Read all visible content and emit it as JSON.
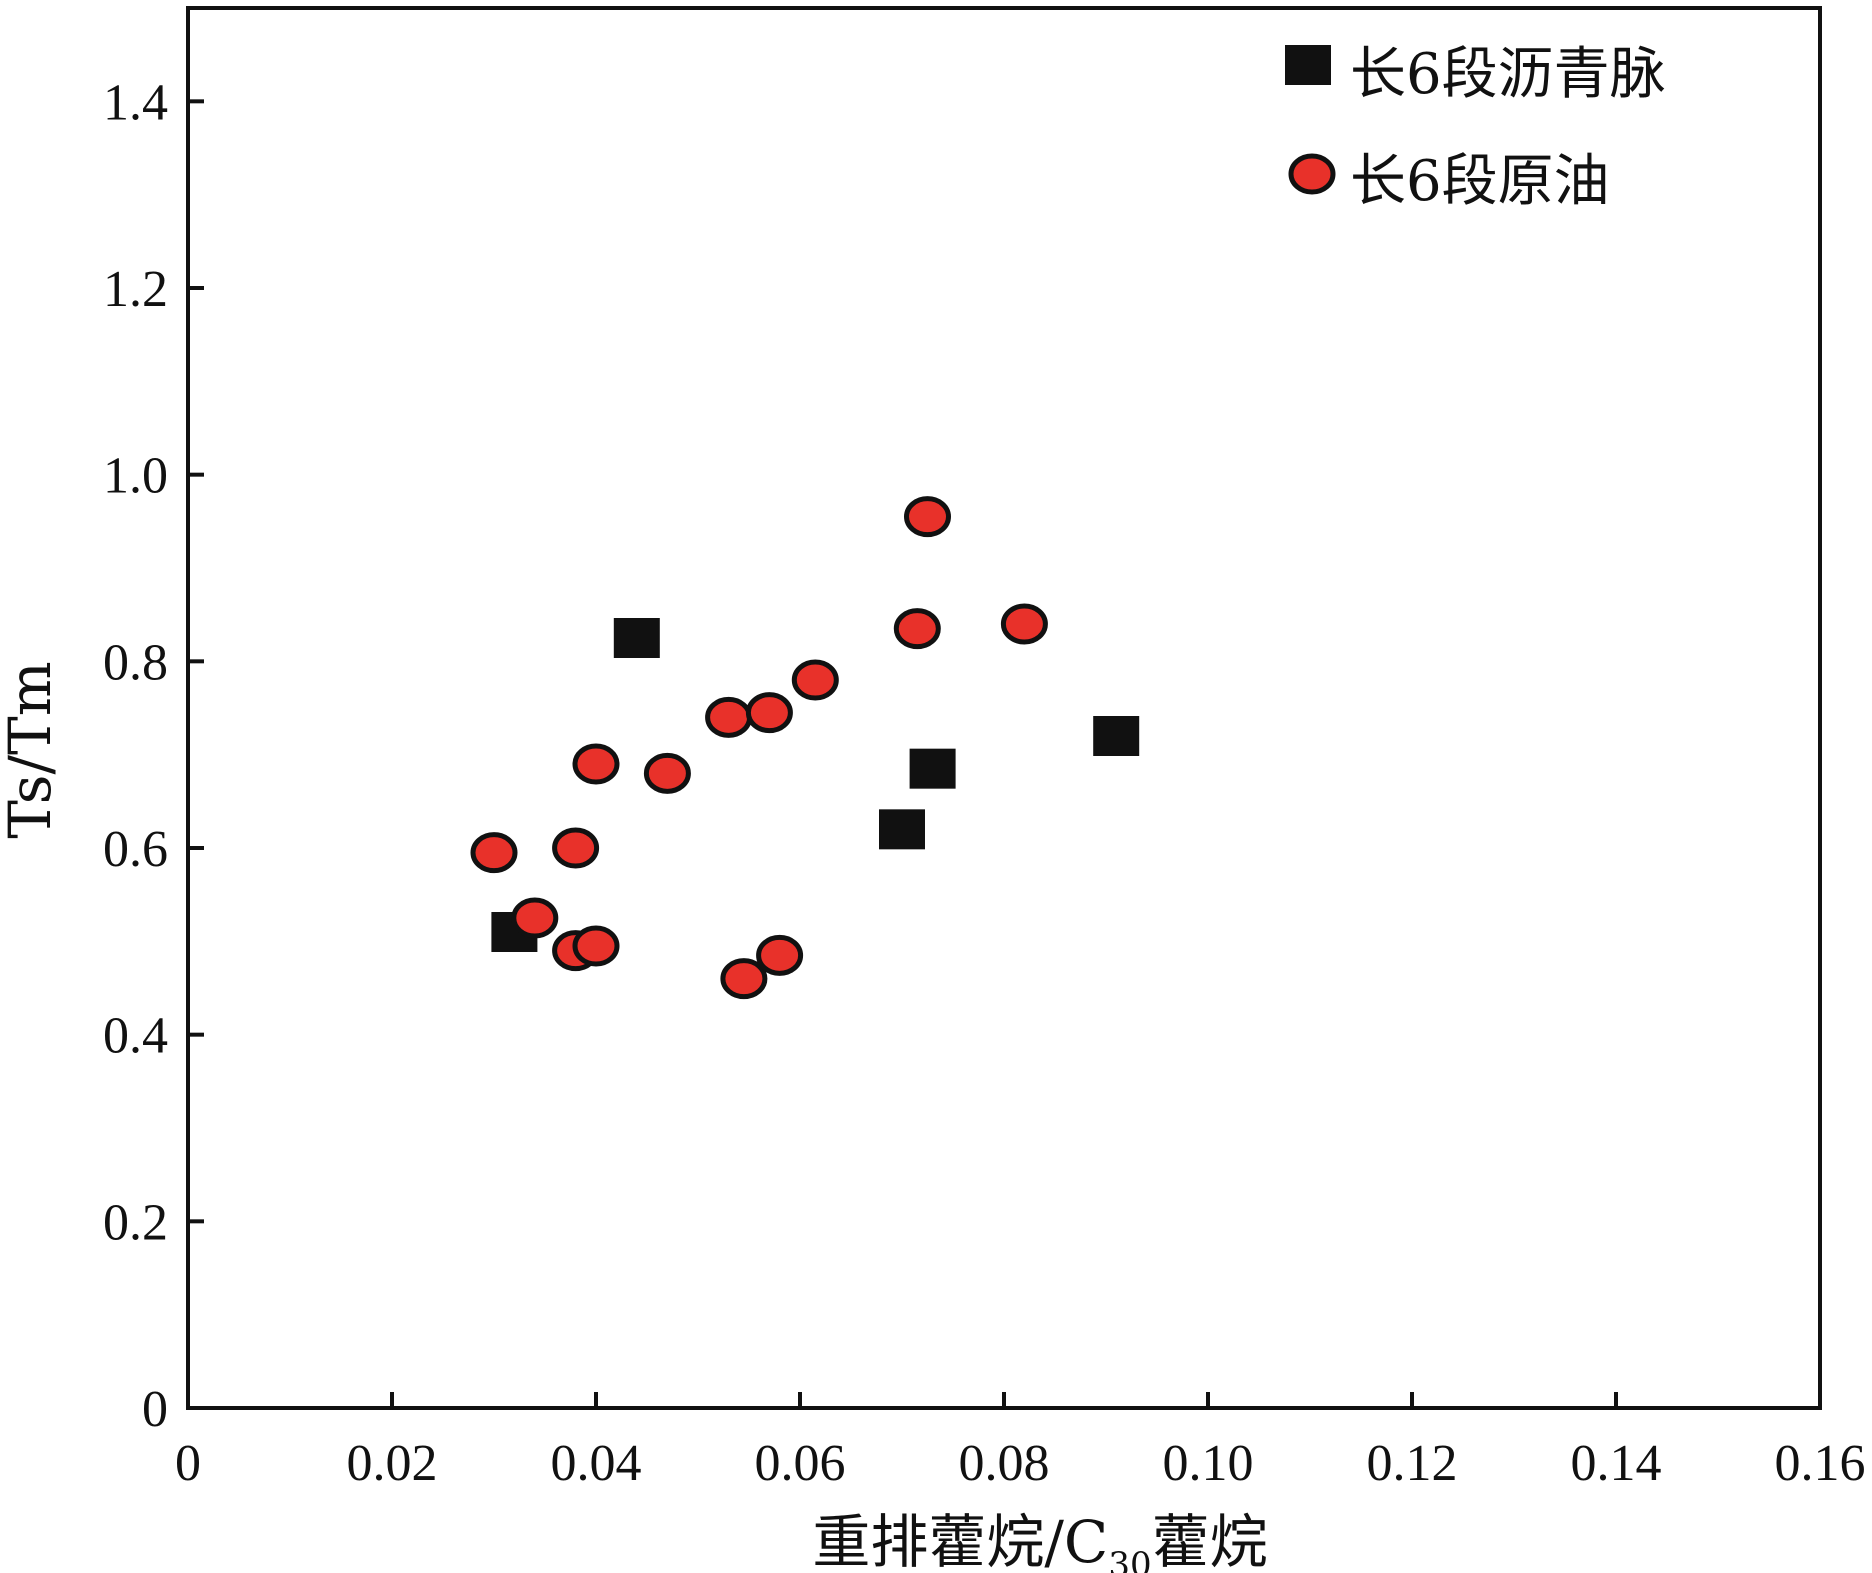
{
  "chart_data": {
    "type": "scatter",
    "xlabel": {
      "main": "重排藿烷/C",
      "sub": "30",
      "tail": "藿烷"
    },
    "ylabel": "Ts/Tm",
    "xlim": [
      0,
      0.16
    ],
    "ylim": [
      0,
      1.5
    ],
    "x_ticks": [
      "0",
      "0.02",
      "0.04",
      "0.06",
      "0.08",
      "0.10",
      "0.12",
      "0.14",
      "0.16"
    ],
    "y_ticks": [
      "0",
      "0.2",
      "0.4",
      "0.6",
      "0.8",
      "1.0",
      "1.2",
      "1.4"
    ],
    "legend_position": "top-right",
    "series": [
      {
        "name": "长6段沥青脉",
        "marker": "square",
        "color": "#111111",
        "points": [
          {
            "x": 0.032,
            "y": 0.51
          },
          {
            "x": 0.044,
            "y": 0.825
          },
          {
            "x": 0.07,
            "y": 0.62
          },
          {
            "x": 0.073,
            "y": 0.685
          },
          {
            "x": 0.091,
            "y": 0.72
          }
        ]
      },
      {
        "name": "长6段原油",
        "marker": "circle",
        "color": "#e8312a",
        "points": [
          {
            "x": 0.03,
            "y": 0.595
          },
          {
            "x": 0.034,
            "y": 0.525
          },
          {
            "x": 0.038,
            "y": 0.6
          },
          {
            "x": 0.038,
            "y": 0.49
          },
          {
            "x": 0.04,
            "y": 0.69
          },
          {
            "x": 0.04,
            "y": 0.495
          },
          {
            "x": 0.047,
            "y": 0.68
          },
          {
            "x": 0.053,
            "y": 0.74
          },
          {
            "x": 0.0545,
            "y": 0.46
          },
          {
            "x": 0.057,
            "y": 0.745
          },
          {
            "x": 0.058,
            "y": 0.485
          },
          {
            "x": 0.0615,
            "y": 0.78
          },
          {
            "x": 0.0715,
            "y": 0.835
          },
          {
            "x": 0.0725,
            "y": 0.955
          },
          {
            "x": 0.082,
            "y": 0.84
          }
        ]
      }
    ]
  }
}
